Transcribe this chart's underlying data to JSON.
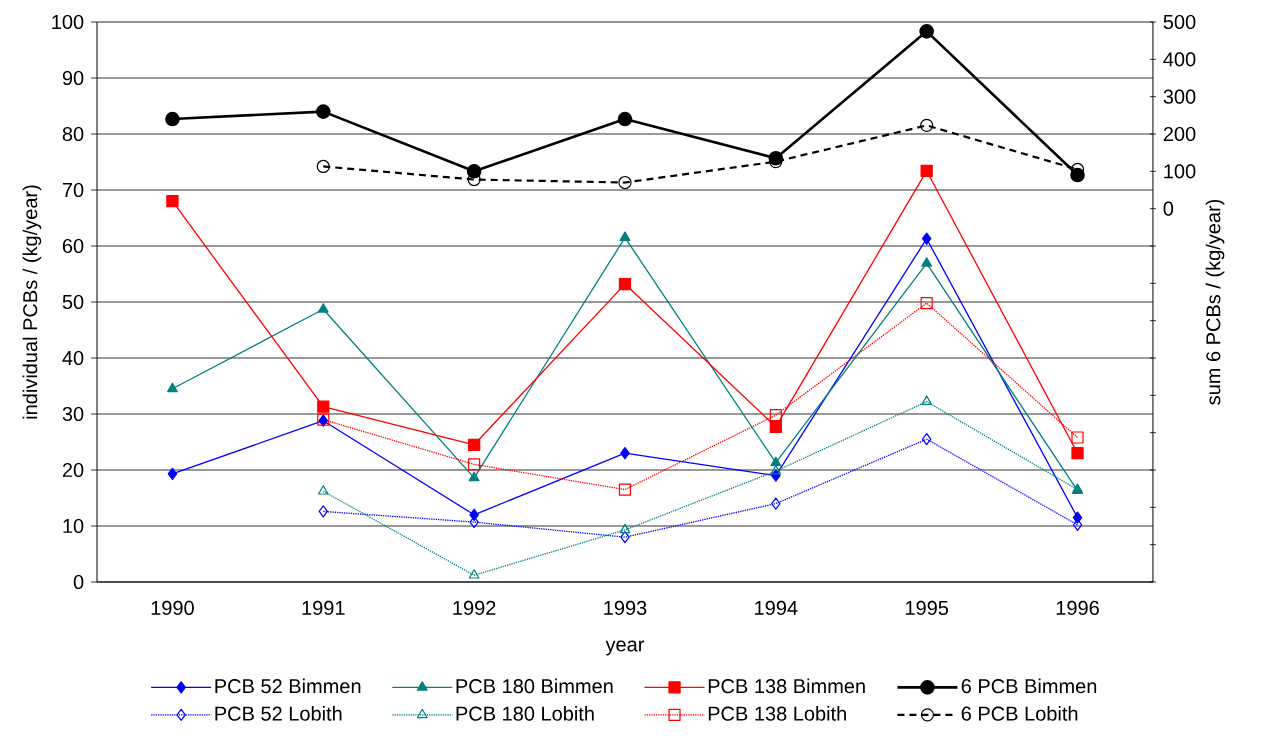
{
  "chart_data": {
    "type": "line",
    "xlabel": "year",
    "ylabel": "individual PCBs / (kg/year)",
    "y2label": "sum 6 PCBs / (kg/year)",
    "categories": [
      "1990",
      "1991",
      "1992",
      "1993",
      "1994",
      "1995",
      "1996"
    ],
    "ylim": [
      0,
      100
    ],
    "yticks": [
      0,
      10,
      20,
      30,
      40,
      50,
      60,
      70,
      80,
      90,
      100
    ],
    "y2lim": [
      -1000,
      500
    ],
    "y2ticks": [
      {
        "value": -1000,
        "label": null
      },
      {
        "value": -900,
        "label": null
      },
      {
        "value": -800,
        "label": null
      },
      {
        "value": -700,
        "label": null
      },
      {
        "value": -600,
        "label": null
      },
      {
        "value": -500,
        "label": null
      },
      {
        "value": -400,
        "label": null
      },
      {
        "value": -300,
        "label": null
      },
      {
        "value": -200,
        "label": null
      },
      {
        "value": -100,
        "label": null
      },
      0,
      100,
      200,
      300,
      400,
      500
    ],
    "grid": "y",
    "legend": "bottom",
    "series": [
      {
        "name": "PCB 52 Bimmen",
        "color": "#0000ff",
        "marker": "diamond",
        "line_style": "solid",
        "values": [
          19.3,
          28.8,
          12,
          23,
          19,
          61.3,
          11.5
        ]
      },
      {
        "name": "PCB 180 Bimmen",
        "color": "#008080",
        "marker": "triangle",
        "line_style": "solid",
        "values": [
          34.5,
          48.7,
          18.6,
          61.5,
          21.3,
          56.9,
          16.3
        ]
      },
      {
        "name": "PCB 138 Bimmen",
        "color": "#ff0000",
        "marker": "square",
        "line_style": "solid",
        "values": [
          68,
          31.3,
          24.5,
          53.2,
          27.7,
          73.4,
          23
        ]
      },
      {
        "name": "6 PCB Bimmen",
        "color": "#000000",
        "marker": "circle",
        "line_style": "solid",
        "axis": "y2",
        "values": [
          240,
          260,
          100,
          240,
          135,
          475,
          90
        ]
      },
      {
        "name": "PCB 52 Lobith",
        "color": "#0000ff",
        "marker": "diamond",
        "line_style": "dotted",
        "values": [
          null,
          12.6,
          10.7,
          8,
          14,
          25.5,
          10.2
        ]
      },
      {
        "name": "PCB 180 Lobith",
        "color": "#008080",
        "marker": "triangle",
        "line_style": "dotted",
        "values": [
          null,
          16.2,
          1.2,
          9.3,
          19.8,
          32.2,
          16.5
        ]
      },
      {
        "name": "PCB 138 Lobith",
        "color": "#ff0000",
        "marker": "square",
        "line_style": "dotted",
        "values": [
          null,
          29,
          21,
          16.5,
          29.8,
          49.8,
          25.8
        ]
      },
      {
        "name": "6 PCB Lobith",
        "color": "#000000",
        "marker": "circle",
        "line_style": "dashed",
        "axis": "y2",
        "values": [
          null,
          113,
          78,
          70,
          126,
          223,
          105
        ]
      }
    ]
  }
}
